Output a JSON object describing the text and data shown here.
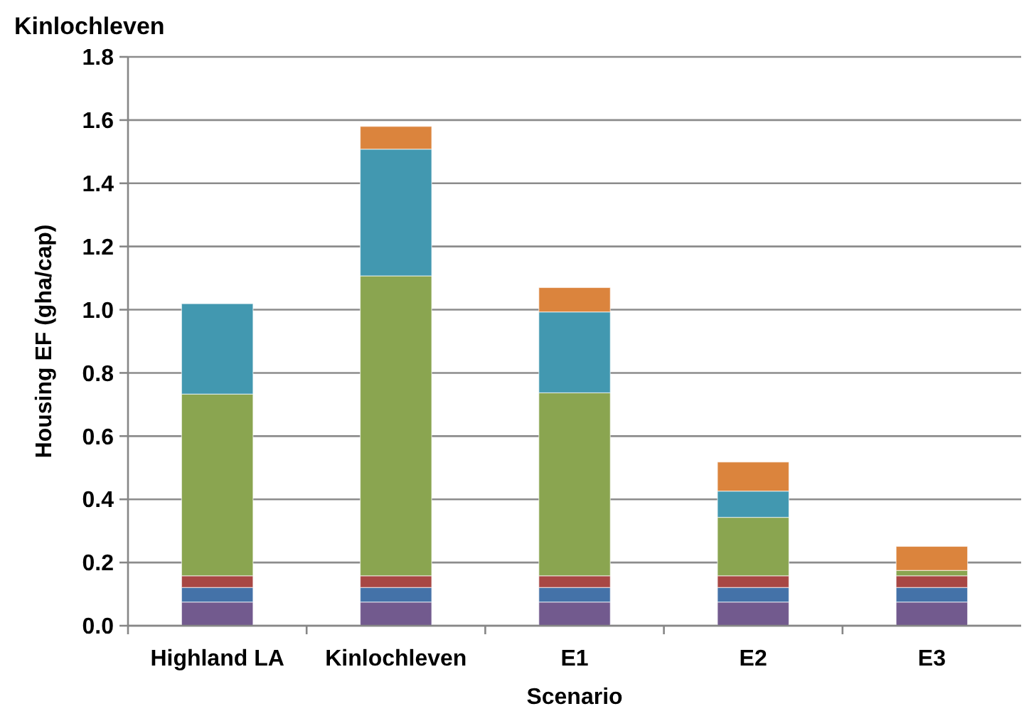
{
  "chart_data": {
    "type": "bar",
    "stacked": true,
    "title": "Kinlochleven",
    "xlabel": "Scenario",
    "ylabel": "Housing EF (gha/cap)",
    "categories": [
      "Highland LA",
      "Kinlochleven",
      "E1",
      "E2",
      "E3"
    ],
    "series": [
      {
        "color": "#725a8e",
        "values": [
          0.075,
          0.075,
          0.075,
          0.075,
          0.075
        ]
      },
      {
        "color": "#4472a8",
        "values": [
          0.046,
          0.046,
          0.046,
          0.046,
          0.046
        ]
      },
      {
        "color": "#a84744",
        "values": [
          0.037,
          0.037,
          0.037,
          0.037,
          0.037
        ]
      },
      {
        "color": "#8aa550",
        "values": [
          0.575,
          0.949,
          0.579,
          0.185,
          0.017
        ]
      },
      {
        "color": "#4298b0",
        "values": [
          0.286,
          0.401,
          0.256,
          0.083,
          0
        ]
      },
      {
        "color": "#db843d",
        "values": [
          0,
          0.072,
          0.077,
          0.092,
          0.076
        ]
      }
    ],
    "ylim": [
      0,
      1.8
    ],
    "yticks": [
      {
        "value": 0,
        "label": "0.0"
      },
      {
        "value": 0.2,
        "label": "0.2"
      },
      {
        "value": 0.4,
        "label": "0.4"
      },
      {
        "value": 0.6,
        "label": "0.6"
      },
      {
        "value": 0.8,
        "label": "0.8"
      },
      {
        "value": 1,
        "label": "1.0"
      },
      {
        "value": 1.2,
        "label": "1.2"
      },
      {
        "value": 1.4,
        "label": "1.4"
      },
      {
        "value": 1.6,
        "label": "1.6"
      },
      {
        "value": 1.8,
        "label": "1.8"
      }
    ],
    "grid": "y"
  }
}
